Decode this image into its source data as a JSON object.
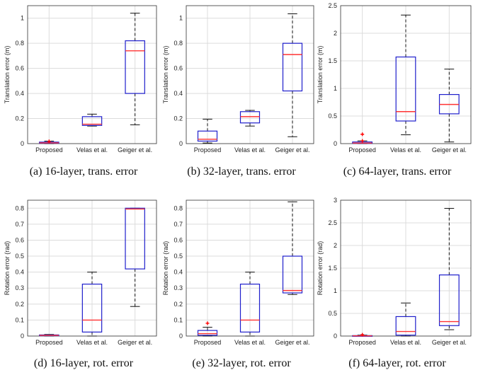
{
  "chart_data": [
    {
      "type": "boxplot",
      "caption": "(a) 16-layer, trans. error",
      "ylabel": "Translation error (m)",
      "categories": [
        "Proposed",
        "Velas et al.",
        "Geiger et al."
      ],
      "ylim": [
        0,
        1.1
      ],
      "yticks": [
        0,
        0.2,
        0.4,
        0.6,
        0.8,
        1
      ],
      "grid": true,
      "boxes": [
        {
          "min": 0.0,
          "q1": 0.003,
          "median": 0.006,
          "q3": 0.012,
          "max": 0.02,
          "outliers": [
            0.018
          ]
        },
        {
          "min": 0.14,
          "q1": 0.145,
          "median": 0.155,
          "q3": 0.215,
          "max": 0.235,
          "outliers": []
        },
        {
          "min": 0.15,
          "q1": 0.4,
          "median": 0.74,
          "q3": 0.82,
          "max": 1.04,
          "outliers": []
        }
      ]
    },
    {
      "type": "boxplot",
      "caption": "(b) 32-layer, trans. error",
      "ylabel": "Translation error (m)",
      "categories": [
        "Proposed",
        "Velas et al.",
        "Geiger et al."
      ],
      "ylim": [
        0,
        1.1
      ],
      "yticks": [
        0,
        0.2,
        0.4,
        0.6,
        0.8,
        1
      ],
      "grid": true,
      "boxes": [
        {
          "min": 0.005,
          "q1": 0.02,
          "median": 0.035,
          "q3": 0.1,
          "max": 0.195,
          "outliers": []
        },
        {
          "min": 0.14,
          "q1": 0.165,
          "median": 0.215,
          "q3": 0.255,
          "max": 0.265,
          "outliers": []
        },
        {
          "min": 0.055,
          "q1": 0.42,
          "median": 0.71,
          "q3": 0.8,
          "max": 1.035,
          "outliers": []
        }
      ]
    },
    {
      "type": "boxplot",
      "caption": "(c) 64-layer, trans. error",
      "ylabel": "Translation error (m)",
      "categories": [
        "Proposed",
        "Velas et al.",
        "Geiger et al."
      ],
      "ylim": [
        0,
        2.5
      ],
      "yticks": [
        0,
        0.5,
        1,
        1.5,
        2,
        2.5
      ],
      "grid": true,
      "boxes": [
        {
          "min": 0.0,
          "q1": 0.005,
          "median": 0.01,
          "q3": 0.03,
          "max": 0.05,
          "outliers": [
            0.05,
            0.17
          ]
        },
        {
          "min": 0.16,
          "q1": 0.41,
          "median": 0.58,
          "q3": 1.57,
          "max": 2.33,
          "outliers": []
        },
        {
          "min": 0.03,
          "q1": 0.54,
          "median": 0.71,
          "q3": 0.89,
          "max": 1.35,
          "outliers": []
        }
      ]
    },
    {
      "type": "boxplot",
      "caption": "(d) 16-layer, rot. error",
      "ylabel": "Rotation error (rad)",
      "categories": [
        "Proposed",
        "Velas et al.",
        "Geiger et al."
      ],
      "ylim": [
        0,
        0.85
      ],
      "yticks": [
        0,
        0.1,
        0.2,
        0.3,
        0.4,
        0.5,
        0.6,
        0.7,
        0.8
      ],
      "grid": true,
      "boxes": [
        {
          "min": 0.0,
          "q1": 0.002,
          "median": 0.004,
          "q3": 0.007,
          "max": 0.01,
          "outliers": []
        },
        {
          "min": 0.0,
          "q1": 0.025,
          "median": 0.1,
          "q3": 0.325,
          "max": 0.4,
          "outliers": []
        },
        {
          "min": 0.185,
          "q1": 0.42,
          "median": 0.795,
          "q3": 0.8,
          "max": 0.8,
          "outliers": []
        }
      ]
    },
    {
      "type": "boxplot",
      "caption": "(e) 32-layer, rot. error",
      "ylabel": "Rotation error (rad)",
      "categories": [
        "Proposed",
        "Velas et al.",
        "Geiger et al."
      ],
      "ylim": [
        0,
        0.85
      ],
      "yticks": [
        0,
        0.1,
        0.2,
        0.3,
        0.4,
        0.5,
        0.6,
        0.7,
        0.8
      ],
      "grid": true,
      "boxes": [
        {
          "min": 0.0,
          "q1": 0.005,
          "median": 0.015,
          "q3": 0.035,
          "max": 0.055,
          "outliers": [
            0.08
          ]
        },
        {
          "min": 0.0,
          "q1": 0.025,
          "median": 0.1,
          "q3": 0.325,
          "max": 0.4,
          "outliers": []
        },
        {
          "min": 0.26,
          "q1": 0.27,
          "median": 0.285,
          "q3": 0.5,
          "max": 0.84,
          "outliers": []
        }
      ]
    },
    {
      "type": "boxplot",
      "caption": "(f) 64-layer, rot. error",
      "ylabel": "Rotation error (rad)",
      "categories": [
        "Proposed",
        "Velas et al.",
        "Geiger et al."
      ],
      "ylim": [
        0,
        3
      ],
      "yticks": [
        0,
        0.5,
        1,
        1.5,
        2,
        2.5,
        3
      ],
      "grid": true,
      "boxes": [
        {
          "min": 0.0,
          "q1": 0.002,
          "median": 0.005,
          "q3": 0.01,
          "max": 0.02,
          "outliers": [
            0.03
          ]
        },
        {
          "min": 0.0,
          "q1": 0.02,
          "median": 0.1,
          "q3": 0.43,
          "max": 0.73,
          "outliers": []
        },
        {
          "min": 0.14,
          "q1": 0.23,
          "median": 0.32,
          "q3": 1.35,
          "max": 2.82,
          "outliers": []
        }
      ]
    }
  ],
  "colors": {
    "box": "#1f1fcc",
    "median": "#ff3333",
    "outlier": "#ff0000",
    "whisker": "#111111",
    "grid": "#dcdcdc"
  }
}
